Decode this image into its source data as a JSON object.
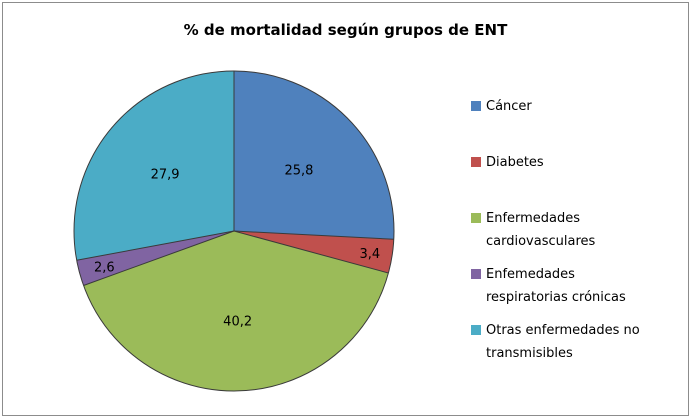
{
  "chart_data": {
    "type": "pie",
    "title": "% de mortalidad según grupos de ENT",
    "categories": [
      "Cáncer",
      "Diabetes",
      "Enfermedades cardiovasculares",
      "Enfemedades respiratorias crónicas",
      "Otras enfermedades no transmisibles"
    ],
    "values": [
      25.8,
      3.4,
      40.2,
      2.6,
      27.9
    ],
    "data_labels": [
      "25,8",
      "3,4",
      "40,2",
      "2,6",
      "27,9"
    ],
    "legend_lines": [
      [
        "Cáncer"
      ],
      [
        "Diabetes"
      ],
      [
        "Enfermedades",
        "cardiovasculares"
      ],
      [
        "Enfemedades",
        "respiratorias crónicas"
      ],
      [
        "Otras enfermedades no",
        "transmisibles"
      ]
    ],
    "colors": [
      "#4f81bd",
      "#c0504d",
      "#9bbb59",
      "#8064a2",
      "#4bacc6"
    ],
    "legend_position": "right"
  }
}
